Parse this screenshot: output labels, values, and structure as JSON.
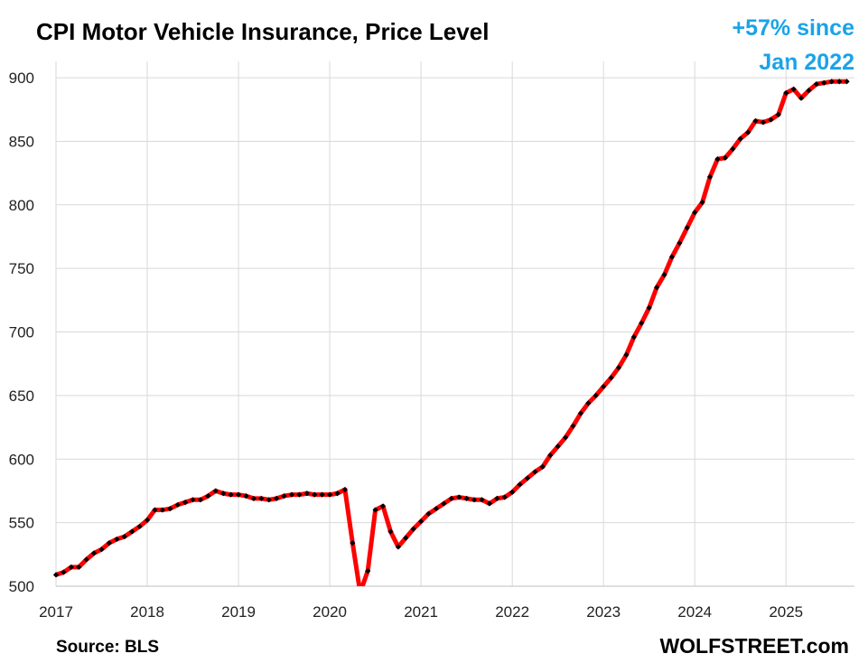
{
  "chart_data": {
    "type": "line",
    "title": "CPI Motor Vehicle Insurance, Price Level",
    "annotation": [
      "+57% since",
      "Jan 2022"
    ],
    "source": "Source: BLS",
    "site": "WOLFSTREET.com",
    "xlabel": "",
    "ylabel": "",
    "xlim": [
      2017,
      2025.75
    ],
    "ylim": [
      500,
      910
    ],
    "x_ticks": [
      2017,
      2018,
      2019,
      2020,
      2021,
      2022,
      2023,
      2024,
      2025
    ],
    "y_ticks": [
      500,
      550,
      600,
      650,
      700,
      750,
      800,
      850,
      900
    ],
    "grid": true,
    "colors": {
      "line": "#ff0000",
      "markers": "#000000",
      "annotation": "#1aa3e8",
      "grid": "#d9d9d9"
    },
    "series": [
      {
        "start": "2017-01",
        "values": [
          509,
          511,
          515,
          515,
          521,
          526,
          529,
          534,
          537,
          539,
          543,
          547,
          552,
          560,
          560,
          561,
          564,
          566,
          568,
          568,
          571,
          575,
          573,
          572,
          572,
          571,
          569,
          569,
          568,
          569,
          571,
          572,
          572,
          573,
          572,
          572,
          572,
          573,
          576,
          534,
          495,
          512,
          560,
          563,
          543,
          531,
          538,
          545,
          551,
          557,
          561,
          565,
          569,
          570,
          569,
          568,
          568,
          565,
          569,
          570,
          574,
          580,
          585,
          590,
          594,
          603,
          610,
          617,
          626,
          636,
          644,
          650,
          657,
          664,
          672,
          682,
          696,
          707,
          719,
          735,
          745,
          759,
          770,
          782,
          794,
          802,
          822,
          836,
          837,
          844,
          852,
          857,
          866,
          865,
          867,
          871,
          888,
          891,
          884,
          890,
          895,
          896,
          897,
          897,
          897
        ]
      }
    ]
  }
}
